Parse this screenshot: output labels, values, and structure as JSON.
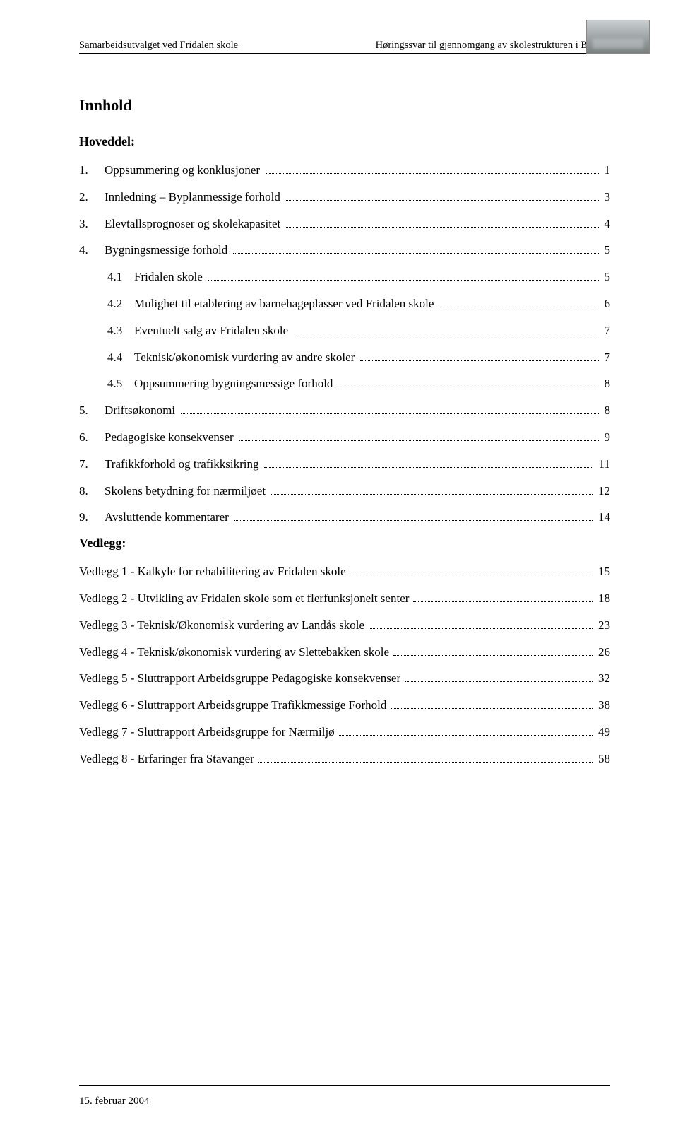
{
  "header": {
    "left": "Samarbeidsutvalget ved Fridalen skole",
    "right": "Høringssvar til gjennomgang av skolestrukturen i Bergen"
  },
  "title": "Innhold",
  "hoveddel_label": "Hoveddel:",
  "vedlegg_label": "Vedlegg:",
  "toc_main": [
    {
      "num": "1.",
      "label": "Oppsummering og konklusjoner",
      "page": "1",
      "sub": false
    },
    {
      "num": "2.",
      "label": "Innledning – Byplanmessige forhold",
      "page": "3",
      "sub": false
    },
    {
      "num": "3.",
      "label": "Elevtallsprognoser og skolekapasitet",
      "page": "4",
      "sub": false
    },
    {
      "num": "4.",
      "label": "Bygningsmessige forhold",
      "page": "5",
      "sub": false
    },
    {
      "num": "4.1",
      "label": "Fridalen skole",
      "page": "5",
      "sub": true
    },
    {
      "num": "4.2",
      "label": "Mulighet til etablering av barnehageplasser ved Fridalen skole",
      "page": "6",
      "sub": true
    },
    {
      "num": "4.3",
      "label": "Eventuelt salg av Fridalen skole",
      "page": "7",
      "sub": true
    },
    {
      "num": "4.4",
      "label": "Teknisk/økonomisk vurdering av andre skoler",
      "page": "7",
      "sub": true
    },
    {
      "num": "4.5",
      "label": "Oppsummering bygningsmessige forhold",
      "page": "8",
      "sub": true
    },
    {
      "num": "5.",
      "label": "Driftsøkonomi",
      "page": "8",
      "sub": false
    },
    {
      "num": "6.",
      "label": "Pedagogiske konsekvenser",
      "page": "9",
      "sub": false
    },
    {
      "num": "7.",
      "label": "Trafikkforhold og trafikksikring",
      "page": "11",
      "sub": false
    },
    {
      "num": "8.",
      "label": "Skolens betydning for nærmiljøet",
      "page": "12",
      "sub": false
    },
    {
      "num": "9.",
      "label": "Avsluttende kommentarer",
      "page": "14",
      "sub": false
    }
  ],
  "toc_vedlegg": [
    {
      "label": "Vedlegg 1 - Kalkyle for rehabilitering av Fridalen skole",
      "page": "15"
    },
    {
      "label": "Vedlegg 2 - Utvikling av Fridalen skole som et flerfunksjonelt senter",
      "page": "18"
    },
    {
      "label": "Vedlegg 3 - Teknisk/Økonomisk vurdering av Landås skole",
      "page": "23"
    },
    {
      "label": "Vedlegg 4 - Teknisk/økonomisk vurdering av Slettebakken skole",
      "page": "26"
    },
    {
      "label": "Vedlegg 5 - Sluttrapport Arbeidsgruppe Pedagogiske konsekvenser",
      "page": "32"
    },
    {
      "label": "Vedlegg 6 - Sluttrapport Arbeidsgruppe Trafikkmessige Forhold",
      "page": "38"
    },
    {
      "label": "Vedlegg 7 - Sluttrapport Arbeidsgruppe for Nærmiljø",
      "page": "49"
    },
    {
      "label": "Vedlegg 8 - Erfaringer fra Stavanger",
      "page": "58"
    }
  ],
  "footer": {
    "date": "15. februar 2004"
  }
}
